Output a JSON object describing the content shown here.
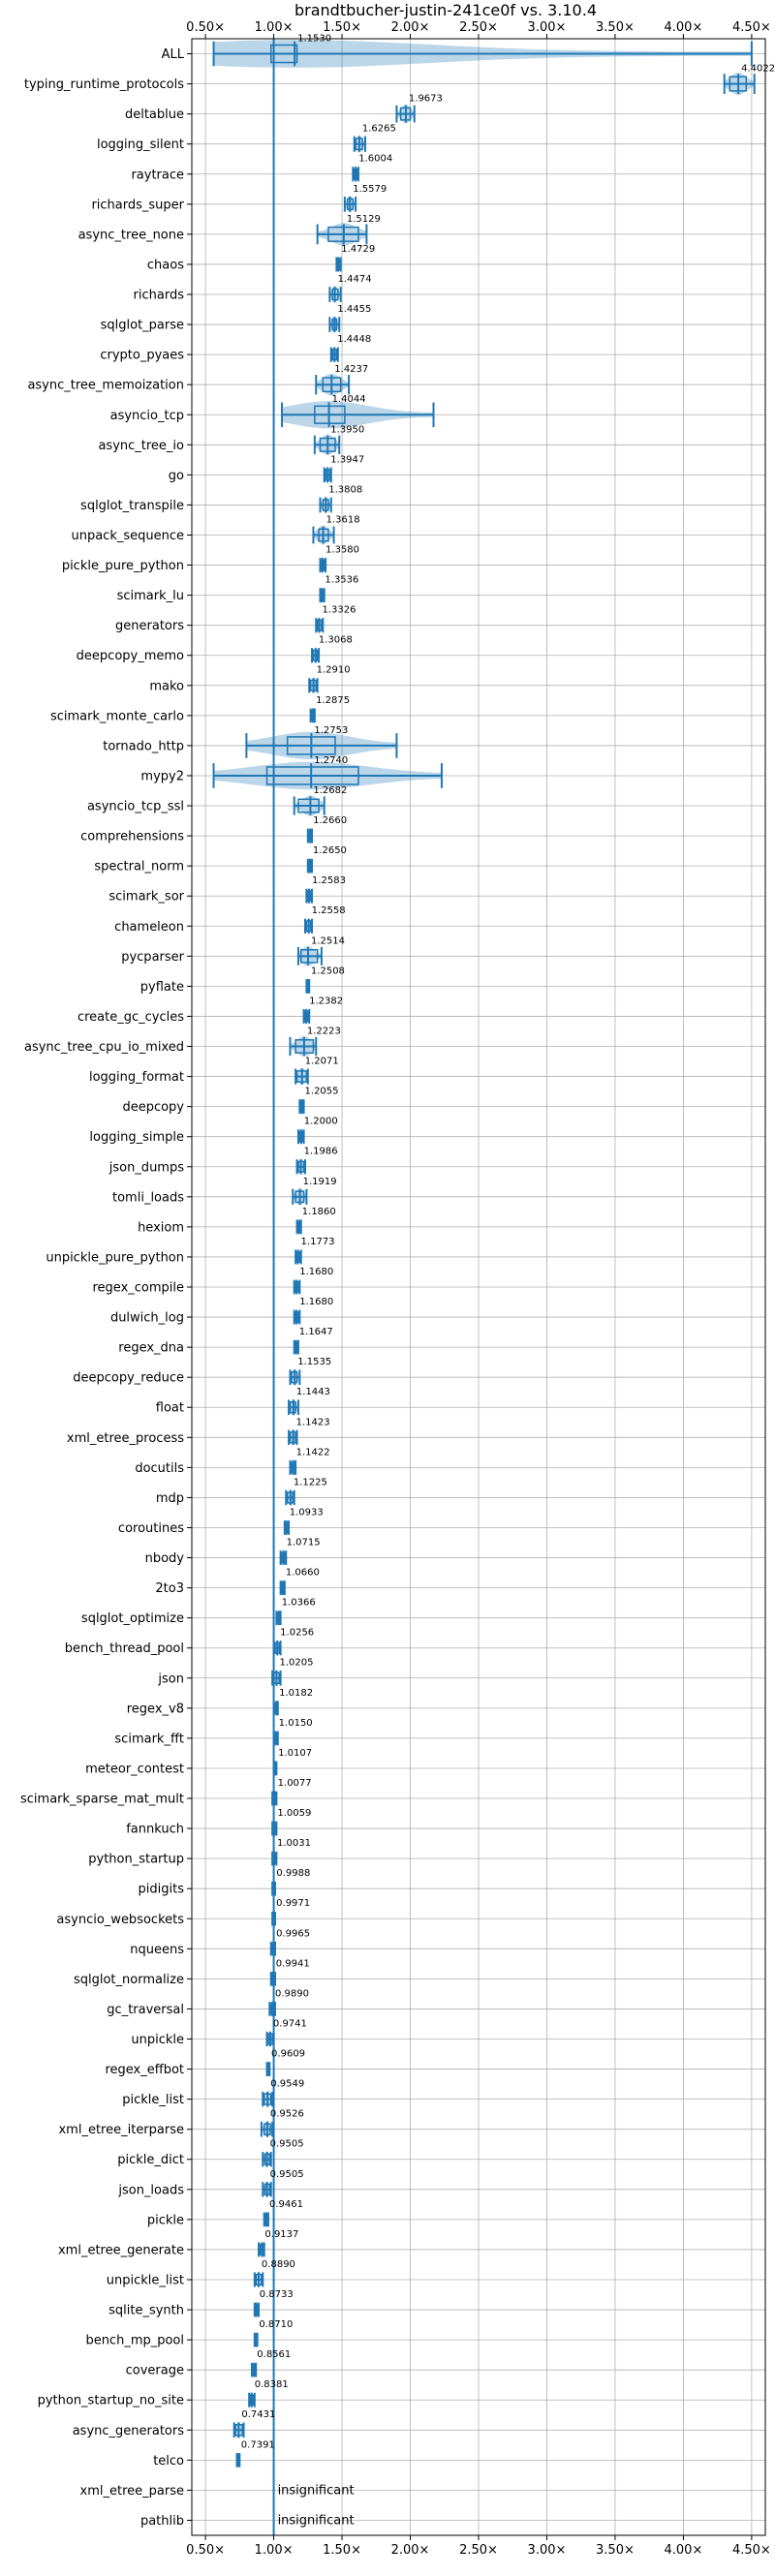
{
  "chart_data": {
    "type": "violin",
    "title": "brandtbucher-justin-241ce0f vs. 3.10.4",
    "xlabel": "",
    "ylabel": "",
    "xlim": [
      0.4,
      4.6
    ],
    "x_scale": "linear",
    "x_ticks": [
      0.5,
      1.0,
      1.5,
      2.0,
      2.5,
      3.0,
      3.5,
      4.0,
      4.5
    ],
    "x_tick_labels": [
      "0.50×",
      "1.00×",
      "1.50×",
      "2.00×",
      "2.50×",
      "3.00×",
      "3.50×",
      "4.00×",
      "4.50×"
    ],
    "baseline": 1.0,
    "grid": true,
    "series": [
      {
        "benchmark": "ALL",
        "value": 1.153,
        "label": "1.1530",
        "min": 0.56,
        "max": 4.5,
        "q1": 0.98,
        "q3": 1.17,
        "spread": 0.28
      },
      {
        "benchmark": "typing_runtime_protocols",
        "value": 4.4022,
        "label": "4.4022",
        "min": 4.3,
        "max": 4.52,
        "q1": 4.34,
        "q3": 4.46,
        "spread": 0.13
      },
      {
        "benchmark": "deltablue",
        "value": 1.9673,
        "label": "1.9673",
        "min": 1.9,
        "max": 2.03,
        "q1": 1.93,
        "q3": 2.0,
        "spread": 0.07
      },
      {
        "benchmark": "logging_silent",
        "value": 1.6265,
        "label": "1.6265",
        "min": 1.59,
        "max": 1.67,
        "q1": 1.6,
        "q3": 1.65,
        "spread": 0.04
      },
      {
        "benchmark": "raytrace",
        "value": 1.6004,
        "label": "1.6004",
        "min": 1.58,
        "max": 1.62,
        "q1": 1.59,
        "q3": 1.61,
        "spread": 0.02
      },
      {
        "benchmark": "richards_super",
        "value": 1.5579,
        "label": "1.5579",
        "min": 1.52,
        "max": 1.6,
        "q1": 1.54,
        "q3": 1.58,
        "spread": 0.03
      },
      {
        "benchmark": "async_tree_none",
        "value": 1.5129,
        "label": "1.5129",
        "min": 1.32,
        "max": 1.68,
        "q1": 1.4,
        "q3": 1.62,
        "spread": 0.13
      },
      {
        "benchmark": "chaos",
        "value": 1.4729,
        "label": "1.4729",
        "min": 1.46,
        "max": 1.49,
        "q1": 1.465,
        "q3": 1.48,
        "spread": 0.015
      },
      {
        "benchmark": "richards",
        "value": 1.4474,
        "label": "1.4474",
        "min": 1.41,
        "max": 1.49,
        "q1": 1.43,
        "q3": 1.47,
        "spread": 0.03
      },
      {
        "benchmark": "sqlglot_parse",
        "value": 1.4455,
        "label": "1.4455",
        "min": 1.41,
        "max": 1.48,
        "q1": 1.43,
        "q3": 1.46,
        "spread": 0.03
      },
      {
        "benchmark": "crypto_pyaes",
        "value": 1.4448,
        "label": "1.4448",
        "min": 1.42,
        "max": 1.47,
        "q1": 1.43,
        "q3": 1.46,
        "spread": 0.02
      },
      {
        "benchmark": "async_tree_memoization",
        "value": 1.4237,
        "label": "1.4237",
        "min": 1.31,
        "max": 1.55,
        "q1": 1.36,
        "q3": 1.49,
        "spread": 0.12
      },
      {
        "benchmark": "asyncio_tcp",
        "value": 1.4044,
        "label": "1.4044",
        "min": 1.06,
        "max": 2.17,
        "q1": 1.3,
        "q3": 1.52,
        "spread": 0.22
      },
      {
        "benchmark": "async_tree_io",
        "value": 1.395,
        "label": "1.3950",
        "min": 1.3,
        "max": 1.48,
        "q1": 1.34,
        "q3": 1.45,
        "spread": 0.1
      },
      {
        "benchmark": "go",
        "value": 1.3947,
        "label": "1.3947",
        "min": 1.37,
        "max": 1.42,
        "q1": 1.38,
        "q3": 1.41,
        "spread": 0.03
      },
      {
        "benchmark": "sqlglot_transpile",
        "value": 1.3808,
        "label": "1.3808",
        "min": 1.34,
        "max": 1.42,
        "q1": 1.36,
        "q3": 1.4,
        "spread": 0.03
      },
      {
        "benchmark": "unpack_sequence",
        "value": 1.3618,
        "label": "1.3618",
        "min": 1.29,
        "max": 1.44,
        "q1": 1.33,
        "q3": 1.4,
        "spread": 0.07
      },
      {
        "benchmark": "pickle_pure_python",
        "value": 1.358,
        "label": "1.3580",
        "min": 1.34,
        "max": 1.38,
        "q1": 1.35,
        "q3": 1.37,
        "spread": 0.02
      },
      {
        "benchmark": "scimark_lu",
        "value": 1.3536,
        "label": "1.3536",
        "min": 1.34,
        "max": 1.37,
        "q1": 1.345,
        "q3": 1.36,
        "spread": 0.012
      },
      {
        "benchmark": "generators",
        "value": 1.3326,
        "label": "1.3326",
        "min": 1.31,
        "max": 1.36,
        "q1": 1.32,
        "q3": 1.35,
        "spread": 0.02
      },
      {
        "benchmark": "deepcopy_memo",
        "value": 1.3068,
        "label": "1.3068",
        "min": 1.28,
        "max": 1.33,
        "q1": 1.29,
        "q3": 1.32,
        "spread": 0.02
      },
      {
        "benchmark": "mako",
        "value": 1.291,
        "label": "1.2910",
        "min": 1.26,
        "max": 1.32,
        "q1": 1.27,
        "q3": 1.31,
        "spread": 0.02
      },
      {
        "benchmark": "scimark_monte_carlo",
        "value": 1.2875,
        "label": "1.2875",
        "min": 1.27,
        "max": 1.3,
        "q1": 1.28,
        "q3": 1.295,
        "spread": 0.012
      },
      {
        "benchmark": "tornado_http",
        "value": 1.2753,
        "label": "1.2753",
        "min": 0.8,
        "max": 1.9,
        "q1": 1.1,
        "q3": 1.45,
        "spread": 0.45
      },
      {
        "benchmark": "mypy2",
        "value": 1.274,
        "label": "1.2740",
        "min": 0.56,
        "max": 2.23,
        "q1": 0.95,
        "q3": 1.62,
        "spread": 0.85
      },
      {
        "benchmark": "asyncio_tcp_ssl",
        "value": 1.2682,
        "label": "1.2682",
        "min": 1.15,
        "max": 1.37,
        "q1": 1.18,
        "q3": 1.33,
        "spread": 0.1
      },
      {
        "benchmark": "comprehensions",
        "value": 1.266,
        "label": "1.2660",
        "min": 1.25,
        "max": 1.28,
        "q1": 1.255,
        "q3": 1.275,
        "spread": 0.015
      },
      {
        "benchmark": "spectral_norm",
        "value": 1.265,
        "label": "1.2650",
        "min": 1.25,
        "max": 1.28,
        "q1": 1.258,
        "q3": 1.272,
        "spread": 0.01
      },
      {
        "benchmark": "scimark_sor",
        "value": 1.2583,
        "label": "1.2583",
        "min": 1.24,
        "max": 1.28,
        "q1": 1.25,
        "q3": 1.27,
        "spread": 0.015
      },
      {
        "benchmark": "chameleon",
        "value": 1.2558,
        "label": "1.2558",
        "min": 1.23,
        "max": 1.28,
        "q1": 1.24,
        "q3": 1.27,
        "spread": 0.02
      },
      {
        "benchmark": "pycparser",
        "value": 1.2514,
        "label": "1.2514",
        "min": 1.18,
        "max": 1.35,
        "q1": 1.2,
        "q3": 1.32,
        "spread": 0.09
      },
      {
        "benchmark": "pyflate",
        "value": 1.2508,
        "label": "1.2508",
        "min": 1.24,
        "max": 1.26,
        "q1": 1.245,
        "q3": 1.257,
        "spread": 0.01
      },
      {
        "benchmark": "create_gc_cycles",
        "value": 1.2382,
        "label": "1.2382",
        "min": 1.22,
        "max": 1.26,
        "q1": 1.23,
        "q3": 1.25,
        "spread": 0.015
      },
      {
        "benchmark": "async_tree_cpu_io_mixed",
        "value": 1.2223,
        "label": "1.2223",
        "min": 1.12,
        "max": 1.31,
        "q1": 1.16,
        "q3": 1.29,
        "spread": 0.1
      },
      {
        "benchmark": "logging_format",
        "value": 1.2071,
        "label": "1.2071",
        "min": 1.16,
        "max": 1.25,
        "q1": 1.17,
        "q3": 1.24,
        "spread": 0.04
      },
      {
        "benchmark": "deepcopy",
        "value": 1.2055,
        "label": "1.2055",
        "min": 1.19,
        "max": 1.22,
        "q1": 1.195,
        "q3": 1.215,
        "spread": 0.015
      },
      {
        "benchmark": "logging_simple",
        "value": 1.2,
        "label": "1.2000",
        "min": 1.18,
        "max": 1.22,
        "q1": 1.19,
        "q3": 1.21,
        "spread": 0.015
      },
      {
        "benchmark": "json_dumps",
        "value": 1.1986,
        "label": "1.1986",
        "min": 1.17,
        "max": 1.23,
        "q1": 1.18,
        "q3": 1.22,
        "spread": 0.02
      },
      {
        "benchmark": "tomli_loads",
        "value": 1.1919,
        "label": "1.1919",
        "min": 1.14,
        "max": 1.24,
        "q1": 1.16,
        "q3": 1.22,
        "spread": 0.04
      },
      {
        "benchmark": "hexiom",
        "value": 1.186,
        "label": "1.1860",
        "min": 1.17,
        "max": 1.2,
        "q1": 1.18,
        "q3": 1.195,
        "spread": 0.012
      },
      {
        "benchmark": "unpickle_pure_python",
        "value": 1.1773,
        "label": "1.1773",
        "min": 1.16,
        "max": 1.2,
        "q1": 1.17,
        "q3": 1.19,
        "spread": 0.015
      },
      {
        "benchmark": "regex_compile",
        "value": 1.168,
        "label": "1.1680",
        "min": 1.15,
        "max": 1.19,
        "q1": 1.16,
        "q3": 1.18,
        "spread": 0.012
      },
      {
        "benchmark": "dulwich_log",
        "value": 1.168,
        "label": "1.1680",
        "min": 1.15,
        "max": 1.19,
        "q1": 1.16,
        "q3": 1.18,
        "spread": 0.015
      },
      {
        "benchmark": "regex_dna",
        "value": 1.1647,
        "label": "1.1647",
        "min": 1.15,
        "max": 1.18,
        "q1": 1.158,
        "q3": 1.172,
        "spread": 0.01
      },
      {
        "benchmark": "deepcopy_reduce",
        "value": 1.1535,
        "label": "1.1535",
        "min": 1.12,
        "max": 1.19,
        "q1": 1.13,
        "q3": 1.17,
        "spread": 0.03
      },
      {
        "benchmark": "float",
        "value": 1.1443,
        "label": "1.1443",
        "min": 1.11,
        "max": 1.18,
        "q1": 1.12,
        "q3": 1.16,
        "spread": 0.03
      },
      {
        "benchmark": "xml_etree_process",
        "value": 1.1423,
        "label": "1.1423",
        "min": 1.11,
        "max": 1.17,
        "q1": 1.12,
        "q3": 1.16,
        "spread": 0.025
      },
      {
        "benchmark": "docutils",
        "value": 1.1422,
        "label": "1.1422",
        "min": 1.12,
        "max": 1.16,
        "q1": 1.13,
        "q3": 1.155,
        "spread": 0.02
      },
      {
        "benchmark": "mdp",
        "value": 1.1225,
        "label": "1.1225",
        "min": 1.09,
        "max": 1.15,
        "q1": 1.1,
        "q3": 1.14,
        "spread": 0.025
      },
      {
        "benchmark": "coroutines",
        "value": 1.0933,
        "label": "1.0933",
        "min": 1.08,
        "max": 1.11,
        "q1": 1.085,
        "q3": 1.1,
        "spread": 0.01
      },
      {
        "benchmark": "nbody",
        "value": 1.0715,
        "label": "1.0715",
        "min": 1.05,
        "max": 1.09,
        "q1": 1.06,
        "q3": 1.08,
        "spread": 0.015
      },
      {
        "benchmark": "2to3",
        "value": 1.066,
        "label": "1.0660",
        "min": 1.05,
        "max": 1.08,
        "q1": 1.058,
        "q3": 1.075,
        "spread": 0.012
      },
      {
        "benchmark": "sqlglot_optimize",
        "value": 1.0366,
        "label": "1.0366",
        "min": 1.02,
        "max": 1.05,
        "q1": 1.03,
        "q3": 1.045,
        "spread": 0.012
      },
      {
        "benchmark": "bench_thread_pool",
        "value": 1.0256,
        "label": "1.0256",
        "min": 1.0,
        "max": 1.05,
        "q1": 1.01,
        "q3": 1.04,
        "spread": 0.02
      },
      {
        "benchmark": "json",
        "value": 1.0205,
        "label": "1.0205",
        "min": 0.99,
        "max": 1.05,
        "q1": 1.0,
        "q3": 1.04,
        "spread": 0.03
      },
      {
        "benchmark": "regex_v8",
        "value": 1.0182,
        "label": "1.0182",
        "min": 1.0,
        "max": 1.03,
        "q1": 1.01,
        "q3": 1.025,
        "spread": 0.012
      },
      {
        "benchmark": "scimark_fft",
        "value": 1.015,
        "label": "1.0150",
        "min": 1.0,
        "max": 1.03,
        "q1": 1.008,
        "q3": 1.022,
        "spread": 0.01
      },
      {
        "benchmark": "meteor_contest",
        "value": 1.0107,
        "label": "1.0107",
        "min": 1.0,
        "max": 1.02,
        "q1": 1.005,
        "q3": 1.016,
        "spread": 0.01
      },
      {
        "benchmark": "scimark_sparse_mat_mult",
        "value": 1.0077,
        "label": "1.0077",
        "min": 0.99,
        "max": 1.02,
        "q1": 1.0,
        "q3": 1.015,
        "spread": 0.01
      },
      {
        "benchmark": "fannkuch",
        "value": 1.0059,
        "label": "1.0059",
        "min": 0.99,
        "max": 1.02,
        "q1": 0.998,
        "q3": 1.013,
        "spread": 0.012
      },
      {
        "benchmark": "python_startup",
        "value": 1.0031,
        "label": "1.0031",
        "min": 0.99,
        "max": 1.02,
        "q1": 0.997,
        "q3": 1.01,
        "spread": 0.01
      },
      {
        "benchmark": "pidigits",
        "value": 0.9988,
        "label": "0.9988",
        "min": 0.99,
        "max": 1.01,
        "q1": 0.995,
        "q3": 1.003,
        "spread": 0.008
      },
      {
        "benchmark": "asyncio_websockets",
        "value": 0.9971,
        "label": "0.9971",
        "min": 0.99,
        "max": 1.01,
        "q1": 0.993,
        "q3": 1.002,
        "spread": 0.008
      },
      {
        "benchmark": "nqueens",
        "value": 0.9965,
        "label": "0.9965",
        "min": 0.98,
        "max": 1.01,
        "q1": 0.99,
        "q3": 1.004,
        "spread": 0.01
      },
      {
        "benchmark": "sqlglot_normalize",
        "value": 0.9941,
        "label": "0.9941",
        "min": 0.98,
        "max": 1.01,
        "q1": 0.988,
        "q3": 1.0,
        "spread": 0.01
      },
      {
        "benchmark": "gc_traversal",
        "value": 0.989,
        "label": "0.9890",
        "min": 0.97,
        "max": 1.01,
        "q1": 0.98,
        "q3": 0.998,
        "spread": 0.012
      },
      {
        "benchmark": "unpickle",
        "value": 0.9741,
        "label": "0.9741",
        "min": 0.95,
        "max": 1.0,
        "q1": 0.96,
        "q3": 0.99,
        "spread": 0.02
      },
      {
        "benchmark": "regex_effbot",
        "value": 0.9609,
        "label": "0.9609",
        "min": 0.95,
        "max": 0.97,
        "q1": 0.955,
        "q3": 0.966,
        "spread": 0.008
      },
      {
        "benchmark": "pickle_list",
        "value": 0.9549,
        "label": "0.9549",
        "min": 0.92,
        "max": 0.99,
        "q1": 0.93,
        "q3": 0.98,
        "spread": 0.025
      },
      {
        "benchmark": "xml_etree_iterparse",
        "value": 0.9526,
        "label": "0.9526",
        "min": 0.91,
        "max": 0.99,
        "q1": 0.93,
        "q3": 0.975,
        "spread": 0.03
      },
      {
        "benchmark": "pickle_dict",
        "value": 0.9505,
        "label": "0.9505",
        "min": 0.92,
        "max": 0.98,
        "q1": 0.935,
        "q3": 0.97,
        "spread": 0.025
      },
      {
        "benchmark": "json_loads",
        "value": 0.9505,
        "label": "0.9505",
        "min": 0.92,
        "max": 0.98,
        "q1": 0.935,
        "q3": 0.97,
        "spread": 0.025
      },
      {
        "benchmark": "pickle",
        "value": 0.9461,
        "label": "0.9461",
        "min": 0.93,
        "max": 0.96,
        "q1": 0.94,
        "q3": 0.955,
        "spread": 0.012
      },
      {
        "benchmark": "xml_etree_generate",
        "value": 0.9137,
        "label": "0.9137",
        "min": 0.89,
        "max": 0.93,
        "q1": 0.9,
        "q3": 0.925,
        "spread": 0.015
      },
      {
        "benchmark": "unpickle_list",
        "value": 0.889,
        "label": "0.8890",
        "min": 0.86,
        "max": 0.92,
        "q1": 0.87,
        "q3": 0.91,
        "spread": 0.02
      },
      {
        "benchmark": "sqlite_synth",
        "value": 0.8733,
        "label": "0.8733",
        "min": 0.86,
        "max": 0.89,
        "q1": 0.865,
        "q3": 0.882,
        "spread": 0.012
      },
      {
        "benchmark": "bench_mp_pool",
        "value": 0.871,
        "label": "0.8710",
        "min": 0.86,
        "max": 0.88,
        "q1": 0.865,
        "q3": 0.877,
        "spread": 0.008
      },
      {
        "benchmark": "coverage",
        "value": 0.8561,
        "label": "0.8561",
        "min": 0.84,
        "max": 0.87,
        "q1": 0.85,
        "q3": 0.862,
        "spread": 0.01
      },
      {
        "benchmark": "python_startup_no_site",
        "value": 0.8381,
        "label": "0.8381",
        "min": 0.82,
        "max": 0.86,
        "q1": 0.83,
        "q3": 0.85,
        "spread": 0.015
      },
      {
        "benchmark": "async_generators",
        "value": 0.7431,
        "label": "0.7431",
        "min": 0.71,
        "max": 0.78,
        "q1": 0.72,
        "q3": 0.77,
        "spread": 0.03
      },
      {
        "benchmark": "telco",
        "value": 0.7391,
        "label": "0.7391",
        "min": 0.73,
        "max": 0.75,
        "q1": 0.734,
        "q3": 0.745,
        "spread": 0.006
      },
      {
        "benchmark": "xml_etree_parse",
        "value": null,
        "label": "insignificant"
      },
      {
        "benchmark": "pathlib",
        "value": null,
        "label": "insignificant"
      }
    ]
  }
}
